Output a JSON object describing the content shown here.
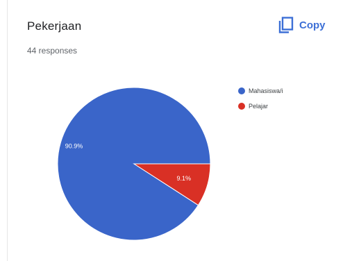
{
  "header": {
    "title": "Pekerjaan",
    "responses": "44 responses",
    "copy_label": "Copy",
    "copy_icon": "copy-icon"
  },
  "chart_data": {
    "type": "pie",
    "title": "Pekerjaan",
    "slices": [
      {
        "label": "Mahasiswa/i",
        "value": 90.9,
        "value_label": "90.9%",
        "color": "#3a65c9"
      },
      {
        "label": "Pelajar",
        "value": 9.1,
        "value_label": "9.1%",
        "color": "#d93025"
      }
    ],
    "legend_position": "right",
    "start_angle_deg": 0,
    "direction": "counterclockwise"
  },
  "colors": {
    "accent": "#3c6fd6"
  }
}
